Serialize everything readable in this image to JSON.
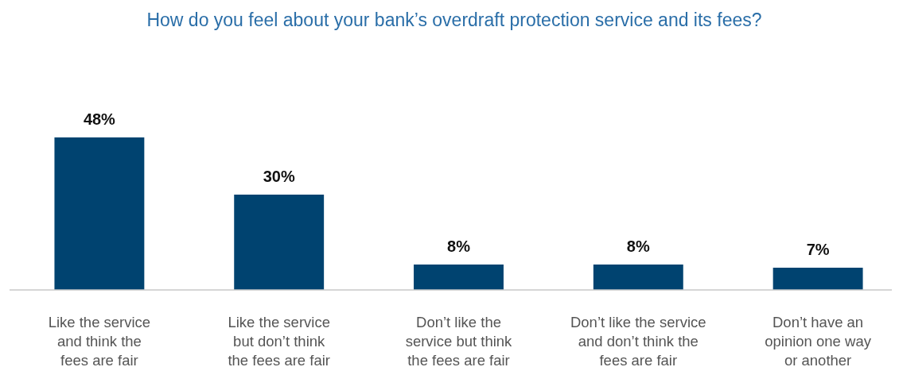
{
  "chart_data": {
    "type": "bar",
    "title": "How do you feel about your bank’s overdraft protection service and its fees?",
    "categories": [
      "Like the service\nand think the\nfees are fair",
      "Like the service\nbut don’t think\nthe fees are fair",
      "Don’t like the\nservice but think\nthe fees are fair",
      "Don’t like the service\nand don’t think the\nfees are fair",
      "Don’t have an\nopinion one way\nor another"
    ],
    "values": [
      48,
      30,
      8,
      8,
      7
    ],
    "value_labels": [
      "48%",
      "30%",
      "8%",
      "8%",
      "7%"
    ],
    "color": "#004370"
  }
}
